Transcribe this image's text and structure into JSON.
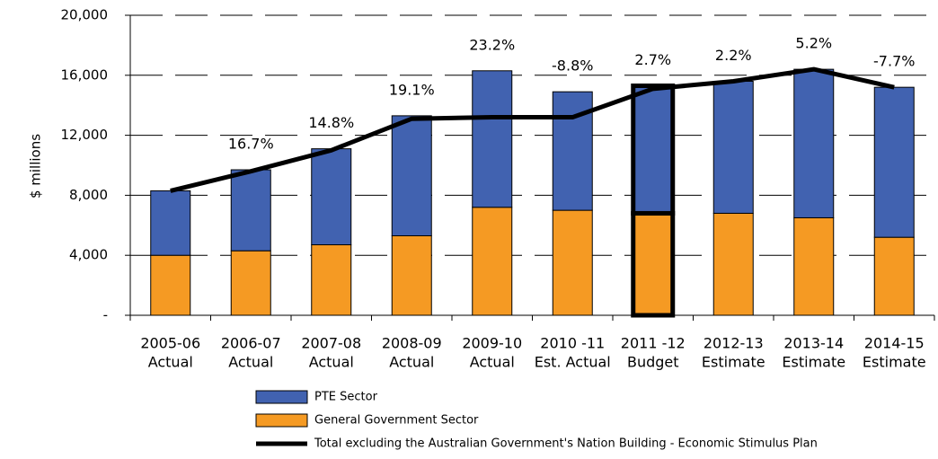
{
  "chart_data": {
    "type": "stacked_bar_line",
    "y_axis_label": "$ millions",
    "categories": [
      [
        "2005-06",
        "Actual"
      ],
      [
        "2006-07",
        "Actual"
      ],
      [
        "2007-08",
        "Actual"
      ],
      [
        "2008-09",
        "Actual"
      ],
      [
        "2009-10",
        "Actual"
      ],
      [
        "2010 -11",
        "Est. Actual"
      ],
      [
        "2011 -12",
        "Budget"
      ],
      [
        "2012-13",
        "Estimate"
      ],
      [
        "2013-14",
        "Estimate"
      ],
      [
        "2014-15",
        "Estimate"
      ]
    ],
    "series": [
      {
        "name": "PTE Sector",
        "color": "#4162b0",
        "values": [
          4300,
          5400,
          6400,
          8000,
          9100,
          7900,
          8500,
          8800,
          9900,
          10000
        ]
      },
      {
        "name": "General Government Sector",
        "color": "#f59a23",
        "values": [
          4000,
          4300,
          4700,
          5300,
          7200,
          7000,
          6800,
          6800,
          6500,
          5200
        ]
      },
      {
        "name": "Total excluding the Australian Government's Nation Building - Economic Stimulus Plan",
        "color": "#000000",
        "kind": "line",
        "values": [
          8300,
          9600,
          11000,
          13100,
          13200,
          13200,
          15100,
          15600,
          16400,
          15200
        ]
      }
    ],
    "growth_labels": [
      null,
      "16.7%",
      "14.8%",
      "19.1%",
      "23.2%",
      "-8.8%",
      "2.7%",
      "2.2%",
      "5.2%",
      "-7.7%"
    ],
    "highlight_index": 6,
    "ylim": [
      0,
      20000
    ],
    "yticks": [
      {
        "value": 0,
        "label": "-"
      },
      {
        "value": 4000,
        "label": "4,000"
      },
      {
        "value": 8000,
        "label": "8,000"
      },
      {
        "value": 12000,
        "label": "12,000"
      },
      {
        "value": 16000,
        "label": "16,000"
      },
      {
        "value": 20000,
        "label": "20,000"
      }
    ],
    "grid": true
  }
}
